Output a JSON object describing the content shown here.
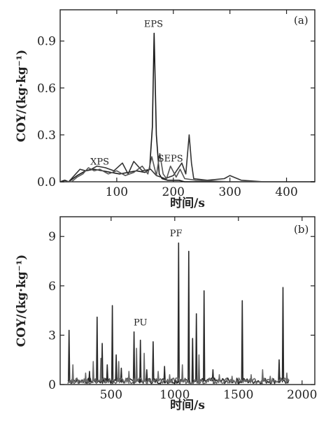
{
  "chart_data": [
    {
      "type": "line",
      "panel_label": "(a)",
      "xlabel": "时间/s",
      "ylabel": "COY/(kg·kg⁻¹)",
      "xlim": [
        0,
        450
      ],
      "ylim": [
        0,
        1.1
      ],
      "x_ticks": [
        "100",
        "200",
        "300",
        "400"
      ],
      "y_ticks": [
        "0.0",
        "0.3",
        "0.6",
        "0.9"
      ],
      "annotations": [
        {
          "text": "XPS",
          "x": 70,
          "y": 0.11
        },
        {
          "text": "EPS",
          "x": 165,
          "y": 0.99
        },
        {
          "text": "SEPS",
          "x": 195,
          "y": 0.13
        }
      ],
      "series": [
        {
          "color": "#1a1a1a",
          "x": [
            0,
            8,
            15,
            30,
            45,
            60,
            75,
            90,
            105,
            120,
            135,
            150,
            158,
            163,
            166,
            170,
            175,
            180,
            190,
            210,
            220,
            230,
            260,
            300,
            340,
            400,
            450
          ],
          "y": [
            0,
            0.01,
            0.0,
            0.04,
            0.07,
            0.08,
            0.07,
            0.06,
            0.05,
            0.06,
            0.07,
            0.06,
            0.08,
            0.35,
            0.95,
            0.3,
            0.05,
            0.02,
            0.01,
            0.01,
            0.0,
            0.0,
            0.0,
            0.0,
            0.0,
            0.0,
            0.0
          ]
        },
        {
          "color": "#333333",
          "x": [
            0,
            15,
            25,
            35,
            45,
            55,
            65,
            80,
            95,
            110,
            120,
            130,
            145,
            160,
            170,
            178,
            185,
            200,
            215,
            222,
            228,
            232,
            236,
            260,
            290,
            300,
            320,
            360,
            450
          ],
          "y": [
            0,
            0.0,
            0.04,
            0.08,
            0.07,
            0.08,
            0.1,
            0.09,
            0.07,
            0.12,
            0.05,
            0.13,
            0.07,
            0.08,
            0.04,
            0.03,
            0.02,
            0.04,
            0.12,
            0.05,
            0.3,
            0.12,
            0.02,
            0.01,
            0.02,
            0.04,
            0.01,
            0.0,
            0.0
          ]
        },
        {
          "color": "#555555",
          "x": [
            0,
            20,
            30,
            40,
            50,
            60,
            70,
            85,
            100,
            115,
            130,
            145,
            155,
            162,
            170,
            176,
            182,
            188,
            195,
            205,
            212,
            220,
            240,
            300,
            450
          ],
          "y": [
            0,
            0.0,
            0.03,
            0.05,
            0.09,
            0.07,
            0.08,
            0.05,
            0.07,
            0.04,
            0.06,
            0.1,
            0.05,
            0.16,
            0.04,
            0.18,
            0.05,
            0.02,
            0.1,
            0.03,
            0.08,
            0.02,
            0.01,
            0.0,
            0.0
          ]
        }
      ]
    },
    {
      "type": "line",
      "panel_label": "(b)",
      "xlabel": "时间/s",
      "ylabel": "COY/(kg·kg⁻¹)",
      "xlim": [
        100,
        2100
      ],
      "ylim": [
        0,
        10.2
      ],
      "x_ticks": [
        "500",
        "1000",
        "1500",
        "2000"
      ],
      "x_tick_values": [
        500,
        1000,
        1500,
        2000
      ],
      "y_ticks": [
        "0",
        "3",
        "6",
        "9"
      ],
      "annotations": [
        {
          "text": "PF",
          "x": 1010,
          "y": 9.0
        },
        {
          "text": "PU",
          "x": 730,
          "y": 3.6
        }
      ],
      "series": [
        {
          "color": "#2a2a2a",
          "peaks": [
            [
              170,
              3.3
            ],
            [
              330,
              0.8
            ],
            [
              390,
              4.1
            ],
            [
              430,
              2.5
            ],
            [
              470,
              1.2
            ],
            [
              510,
              4.8
            ],
            [
              540,
              1.8
            ],
            [
              580,
              1.0
            ],
            [
              680,
              3.2
            ],
            [
              730,
              2.7
            ],
            [
              780,
              0.9
            ],
            [
              830,
              2.6
            ],
            [
              920,
              1.1
            ],
            [
              1030,
              8.6
            ],
            [
              1110,
              8.1
            ],
            [
              1140,
              2.8
            ],
            [
              1170,
              4.3
            ],
            [
              1230,
              5.7
            ],
            [
              1300,
              0.9
            ],
            [
              1530,
              5.1
            ],
            [
              1820,
              1.5
            ],
            [
              1850,
              5.9
            ]
          ]
        },
        {
          "color": "#6a6a6a",
          "peaks": [
            [
              200,
              1.2
            ],
            [
              300,
              0.7
            ],
            [
              360,
              1.4
            ],
            [
              420,
              1.6
            ],
            [
              560,
              1.4
            ],
            [
              640,
              0.8
            ],
            [
              700,
              2.2
            ],
            [
              760,
              1.9
            ],
            [
              870,
              0.8
            ],
            [
              960,
              0.6
            ],
            [
              1060,
              1.2
            ],
            [
              1190,
              1.8
            ],
            [
              1350,
              0.6
            ],
            [
              1450,
              0.5
            ],
            [
              1600,
              0.6
            ],
            [
              1690,
              0.9
            ],
            [
              1750,
              0.5
            ],
            [
              1880,
              0.7
            ]
          ]
        }
      ]
    }
  ]
}
